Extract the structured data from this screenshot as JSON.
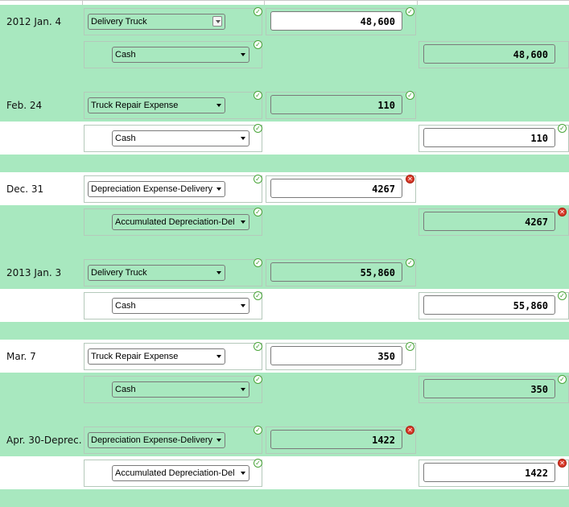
{
  "colors": {
    "band_green": "#a8e8bf",
    "check": "#4aa53a",
    "error": "#d93a2a"
  },
  "entries": [
    {
      "date": "2012 Jan. 4",
      "debit": {
        "account": "Delivery Truck",
        "amount": "48,600",
        "account_status": "correct",
        "amount_status": "correct"
      },
      "credit": {
        "account": "Cash",
        "amount": "48,600",
        "account_status": "correct",
        "amount_status": "none"
      }
    },
    {
      "date": "Feb. 24",
      "debit": {
        "account": "Truck Repair Expense",
        "amount": "110",
        "account_status": "correct",
        "amount_status": "correct"
      },
      "credit": {
        "account": "Cash",
        "amount": "110",
        "account_status": "correct",
        "amount_status": "correct"
      }
    },
    {
      "date": "Dec. 31",
      "debit": {
        "account": "Depreciation Expense-Delivery",
        "amount": "4267",
        "account_status": "correct",
        "amount_status": "incorrect"
      },
      "credit": {
        "account": "Accumulated Depreciation-Del",
        "amount": "4267",
        "account_status": "correct",
        "amount_status": "incorrect"
      }
    },
    {
      "date": "2013 Jan. 3",
      "debit": {
        "account": "Delivery Truck",
        "amount": "55,860",
        "account_status": "correct",
        "amount_status": "correct"
      },
      "credit": {
        "account": "Cash",
        "amount": "55,860",
        "account_status": "correct",
        "amount_status": "correct"
      }
    },
    {
      "date": "Mar. 7",
      "debit": {
        "account": "Truck Repair Expense",
        "amount": "350",
        "account_status": "correct",
        "amount_status": "correct"
      },
      "credit": {
        "account": "Cash",
        "amount": "350",
        "account_status": "correct",
        "amount_status": "correct"
      }
    },
    {
      "date": "Apr. 30-Deprec.",
      "debit": {
        "account": "Depreciation Expense-Delivery",
        "amount": "1422",
        "account_status": "correct",
        "amount_status": "incorrect"
      },
      "credit": {
        "account": "Accumulated Depreciation-Del",
        "amount": "1422",
        "account_status": "correct",
        "amount_status": "incorrect"
      }
    }
  ]
}
